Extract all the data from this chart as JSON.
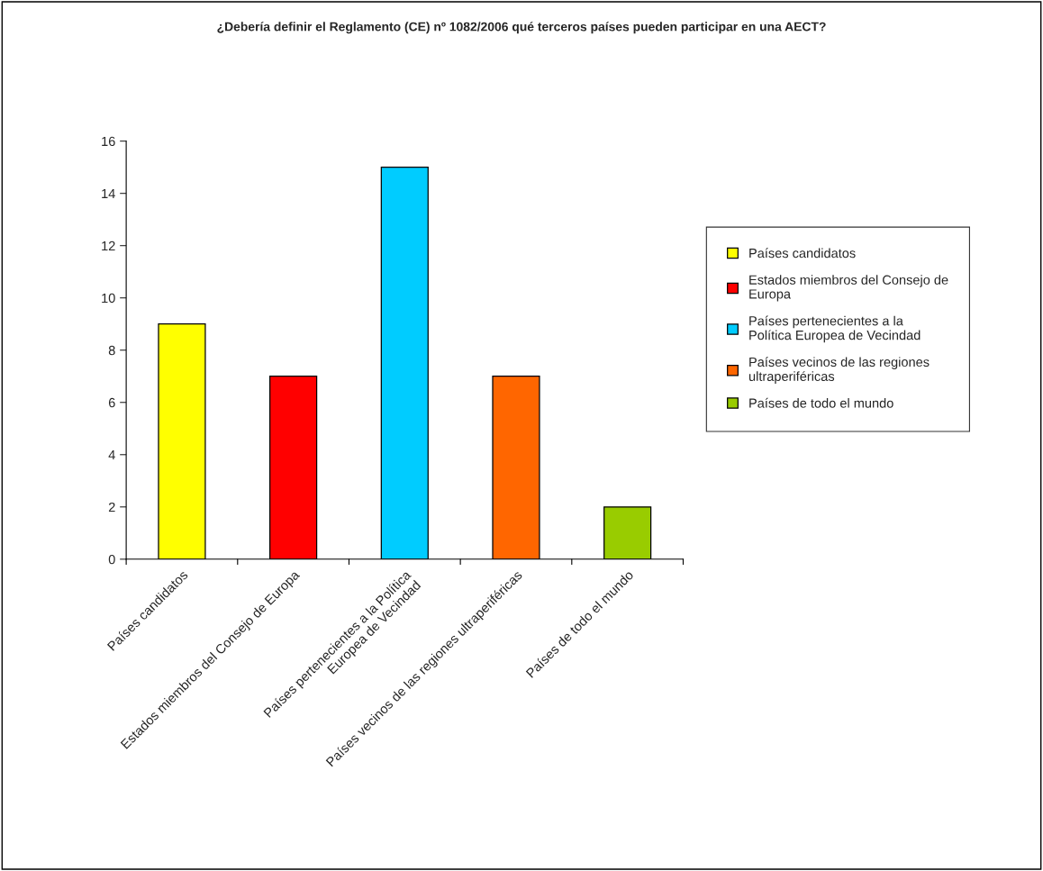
{
  "chart_data": {
    "type": "bar",
    "title": "¿Debería definir el Reglamento (CE) nº 1082/2006 qué terceros países pueden participar en una AECT?",
    "categories": [
      "Países candidatos",
      "Estados miembros del Consejo de Europa",
      "Países pertenecientes a la Política\nEuropea de Vecindad",
      "Países vecinos de las regiones ultraperiféricas",
      "Países de todo el mundo"
    ],
    "series": [
      {
        "name": "Países candidatos",
        "color": "#ffff00",
        "values": [
          9,
          null,
          null,
          null,
          null
        ]
      },
      {
        "name": "Estados miembros del Consejo de Europa",
        "color": "#ff0000",
        "values": [
          null,
          7,
          null,
          null,
          null
        ]
      },
      {
        "name": "Países pertenecientes a la Política Europea de Vecindad",
        "color": "#00ccff",
        "values": [
          null,
          null,
          15,
          null,
          null
        ]
      },
      {
        "name": "Países vecinos de las regiones ultraperiféricas",
        "color": "#ff6600",
        "values": [
          null,
          null,
          null,
          7,
          null
        ]
      },
      {
        "name": "Países de todo el mundo",
        "color": "#99cc00",
        "values": [
          null,
          null,
          null,
          null,
          2
        ]
      }
    ],
    "ylim": [
      0,
      16
    ],
    "yticks": [
      0,
      2,
      4,
      6,
      8,
      10,
      12,
      14,
      16
    ],
    "grid": false,
    "legend": "right"
  }
}
